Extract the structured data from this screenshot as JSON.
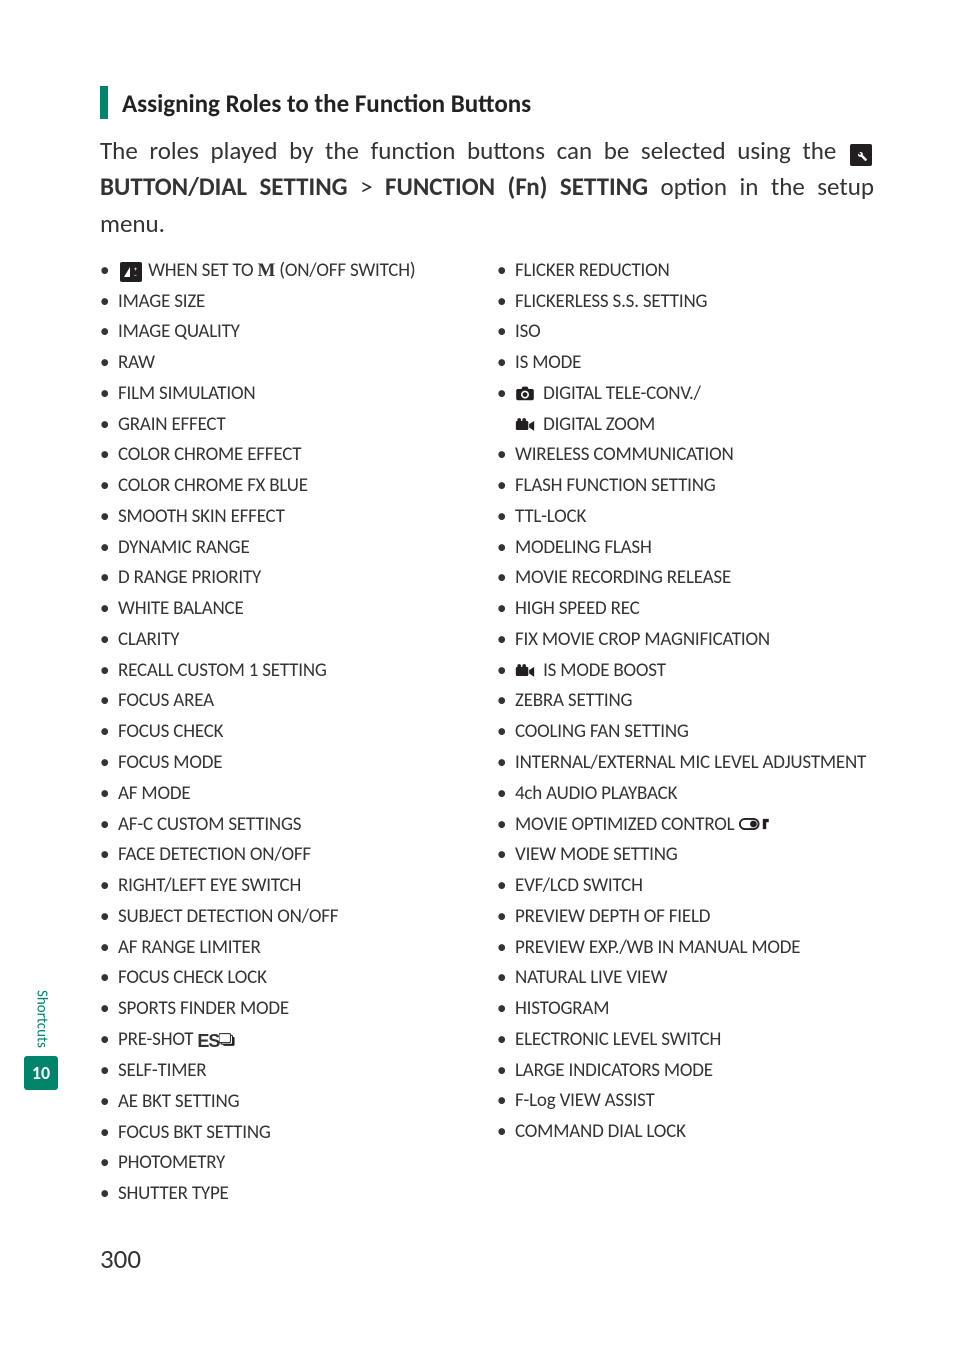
{
  "colors": {
    "accent": "#00846c",
    "text": "#333333",
    "icon_bg": "#231f20",
    "background": "#ffffff"
  },
  "side": {
    "label": "Shortcuts",
    "chapter": "10"
  },
  "heading": "Assigning Roles to the Function Buttons",
  "intro": {
    "part1": "The roles played by the function buttons can be selected using the ",
    "bold1": "BUTTON/DIAL SETTING",
    "gt": " > ",
    "bold2": "FUNCTION (Fn) SETTING",
    "part2": " option in the setup menu."
  },
  "left": [
    {
      "pre_icon": "ev",
      "text_before": "",
      "text": " WHEN SET TO ",
      "suffix_bold": "M",
      "text_after": " (ON/OFF SWITCH)"
    },
    {
      "text": "IMAGE SIZE"
    },
    {
      "text": "IMAGE QUALITY"
    },
    {
      "text": "RAW"
    },
    {
      "text": "FILM SIMULATION"
    },
    {
      "text": "GRAIN EFFECT"
    },
    {
      "text": "COLOR CHROME EFFECT"
    },
    {
      "text": "COLOR CHROME FX BLUE"
    },
    {
      "text": "SMOOTH SKIN EFFECT"
    },
    {
      "text": "DYNAMIC RANGE"
    },
    {
      "text": "D RANGE PRIORITY"
    },
    {
      "text": "WHITE BALANCE"
    },
    {
      "text": "CLARITY"
    },
    {
      "text": "RECALL CUSTOM 1 SETTING"
    },
    {
      "text": "FOCUS AREA"
    },
    {
      "text": "FOCUS CHECK"
    },
    {
      "text": "FOCUS MODE"
    },
    {
      "text": "AF MODE"
    },
    {
      "text": "AF-C CUSTOM SETTINGS"
    },
    {
      "text": "FACE DETECTION ON/OFF"
    },
    {
      "text": "RIGHT/LEFT EYE SWITCH"
    },
    {
      "text": "SUBJECT DETECTION ON/OFF"
    },
    {
      "text": "AF RANGE LIMITER"
    },
    {
      "text": "FOCUS CHECK LOCK"
    },
    {
      "text": "SPORTS FINDER MODE"
    },
    {
      "text": "PRE-SHOT ",
      "suffix_icon": "es"
    },
    {
      "text": "SELF-TIMER"
    },
    {
      "text": "AE BKT SETTING"
    },
    {
      "text": "FOCUS BKT SETTING"
    },
    {
      "text": "PHOTOMETRY"
    },
    {
      "text": "SHUTTER TYPE"
    }
  ],
  "right": [
    {
      "text": "FLICKER REDUCTION"
    },
    {
      "text": "FLICKERLESS S.S. SETTING"
    },
    {
      "text": "ISO"
    },
    {
      "text": "IS MODE"
    },
    {
      "pre_icon": "camera",
      "text": " DIGITAL TELE-CONV./",
      "sub_icon": "movie",
      "sub_text": " DIGITAL ZOOM"
    },
    {
      "text": "WIRELESS COMMUNICATION"
    },
    {
      "text": "FLASH FUNCTION SETTING"
    },
    {
      "text": "TTL-LOCK"
    },
    {
      "text": "MODELING FLASH"
    },
    {
      "text": "MOVIE RECORDING RELEASE"
    },
    {
      "text": "HIGH SPEED REC"
    },
    {
      "text": "FIX MOVIE CROP MAGNIFICATION"
    },
    {
      "pre_icon": "movie",
      "text": " IS MODE BOOST"
    },
    {
      "text": "ZEBRA SETTING"
    },
    {
      "text": "COOLING FAN SETTING"
    },
    {
      "text": "INTERNAL/EXTERNAL MIC LEVEL ADJUSTMENT"
    },
    {
      "text": "4ch AUDIO PLAYBACK"
    },
    {
      "text": "MOVIE OPTIMIZED CONTROL ",
      "suffix_icon": "toggle"
    },
    {
      "text": "VIEW MODE SETTING"
    },
    {
      "text": "EVF/LCD SWITCH"
    },
    {
      "text": "PREVIEW DEPTH OF FIELD"
    },
    {
      "text": "PREVIEW EXP./WB IN MANUAL MODE"
    },
    {
      "text": "NATURAL LIVE VIEW"
    },
    {
      "text": "HISTOGRAM"
    },
    {
      "text": "ELECTRONIC LEVEL SWITCH"
    },
    {
      "text": "LARGE INDICATORS MODE"
    },
    {
      "text": "F-Log VIEW ASSIST"
    },
    {
      "text": "COMMAND DIAL LOCK"
    }
  ],
  "page_number": "300"
}
